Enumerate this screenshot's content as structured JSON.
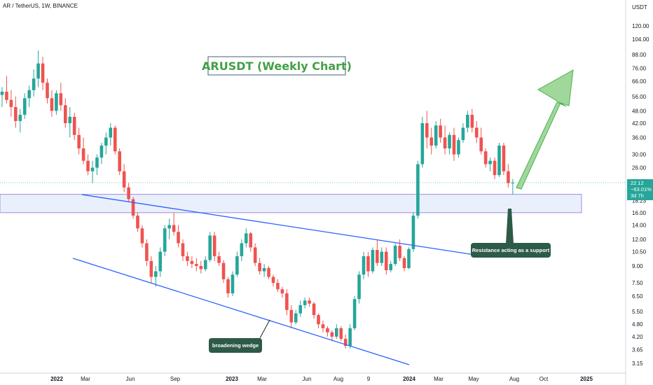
{
  "header": {
    "symbol_line": "AR / TetherUS, 1W, BINANCE",
    "currency": "USDT"
  },
  "colors": {
    "up": "#26a69a",
    "down": "#ef5350",
    "trendline": "#2962ff",
    "zone_fill": "#e3e9fb",
    "zone_border": "#9c8fe0",
    "arrow": "#7cc576",
    "title": "#43a047",
    "callout_bg": "#2e5a48",
    "price_tag": "#26a69a"
  },
  "chart_data": {
    "type": "candlestick",
    "title": "ARUSDT (Weekly Chart)",
    "y_scale": "log",
    "y_ticks": [
      "120.00",
      "104.00",
      "88.00",
      "76.00",
      "66.00",
      "56.00",
      "48.00",
      "42.00",
      "36.00",
      "30.00",
      "26.00",
      "22.12",
      "18.23",
      "16.00",
      "14.00",
      "12.00",
      "10.50",
      "9.00",
      "7.50",
      "6.50",
      "5.50",
      "4.80",
      "4.20",
      "3.65",
      "3.15"
    ],
    "x_ticks": [
      "2022",
      "Mar",
      "Jun",
      "Sep",
      "2023",
      "Mar",
      "Jun",
      "Aug",
      "9",
      "2024",
      "Mar",
      "May",
      "Aug",
      "Oct",
      "2025"
    ],
    "last_price": {
      "value": "22.12",
      "change": "−63.01%",
      "countdown": "3d 7h"
    },
    "support_zone": {
      "low": 16.0,
      "high": 19.5
    },
    "annotations": {
      "wedge_label": "broadening wedge",
      "support_label": "Resistance acting as a support"
    },
    "candles": [
      [
        57,
        62,
        50,
        59
      ],
      [
        59,
        70,
        52,
        54
      ],
      [
        54,
        60,
        45,
        50
      ],
      [
        50,
        56,
        40,
        43
      ],
      [
        43,
        49,
        38,
        46
      ],
      [
        46,
        58,
        44,
        55
      ],
      [
        55,
        63,
        50,
        60
      ],
      [
        60,
        75,
        56,
        68
      ],
      [
        68,
        92,
        62,
        80
      ],
      [
        80,
        86,
        60,
        65
      ],
      [
        65,
        68,
        52,
        55
      ],
      [
        55,
        60,
        45,
        48
      ],
      [
        48,
        60,
        46,
        58
      ],
      [
        58,
        65,
        48,
        51
      ],
      [
        51,
        55,
        40,
        42
      ],
      [
        42,
        50,
        36,
        45
      ],
      [
        45,
        47,
        35,
        37
      ],
      [
        37,
        40,
        30,
        32
      ],
      [
        32,
        36,
        27,
        28
      ],
      [
        28,
        30,
        24,
        25
      ],
      [
        25,
        28,
        22,
        26
      ],
      [
        26,
        30,
        24,
        29
      ],
      [
        29,
        34,
        27,
        33
      ],
      [
        33,
        38,
        30,
        36
      ],
      [
        36,
        42,
        33,
        40
      ],
      [
        40,
        41,
        30,
        31
      ],
      [
        31,
        32,
        24,
        25
      ],
      [
        25,
        27,
        20,
        21
      ],
      [
        21,
        22,
        18,
        18.5
      ],
      [
        18.5,
        19,
        15,
        15.5
      ],
      [
        15.5,
        16,
        13,
        13.5
      ],
      [
        13.5,
        14,
        11,
        11.5
      ],
      [
        11.5,
        12,
        9,
        9.5
      ],
      [
        9.5,
        10,
        7.5,
        8
      ],
      [
        8,
        9,
        7.2,
        8.5
      ],
      [
        8.5,
        11,
        8,
        10.5
      ],
      [
        10.5,
        14,
        10,
        13.5
      ],
      [
        13.5,
        15,
        12,
        14
      ],
      [
        14,
        16,
        12.5,
        13
      ],
      [
        13,
        14,
        11,
        11.5
      ],
      [
        11.5,
        12,
        9.5,
        10
      ],
      [
        10,
        10.5,
        9,
        9.5
      ],
      [
        9.5,
        10,
        8.8,
        9.2
      ],
      [
        9.2,
        9.8,
        8.5,
        9.0
      ],
      [
        9.0,
        9.5,
        8.3,
        8.7
      ],
      [
        8.7,
        10,
        8.5,
        9.6
      ],
      [
        9.6,
        13,
        9.4,
        12.5
      ],
      [
        12.5,
        13,
        9.5,
        10
      ],
      [
        10,
        10.5,
        9,
        9.3
      ],
      [
        9.3,
        9.6,
        7.5,
        7.8
      ],
      [
        7.8,
        8,
        6.4,
        6.7
      ],
      [
        6.7,
        8.5,
        6.5,
        8.2
      ],
      [
        8.2,
        10.5,
        8,
        10
      ],
      [
        10,
        12,
        9.5,
        11.5
      ],
      [
        11.5,
        13.5,
        11,
        12.8
      ],
      [
        12.8,
        13,
        10.5,
        11
      ],
      [
        11,
        11.5,
        9,
        9.3
      ],
      [
        9.3,
        9.8,
        8.2,
        8.5
      ],
      [
        8.5,
        9.2,
        8,
        8.8
      ],
      [
        8.8,
        9,
        7.8,
        8
      ],
      [
        8,
        8.2,
        7.2,
        7.5
      ],
      [
        7.5,
        7.8,
        6.8,
        7
      ],
      [
        7,
        7.2,
        6.4,
        6.7
      ],
      [
        6.7,
        7,
        5.3,
        5.6
      ],
      [
        5.6,
        5.9,
        4.6,
        4.9
      ],
      [
        4.9,
        5.6,
        4.8,
        5.4
      ],
      [
        5.4,
        6.2,
        5.2,
        5.9
      ],
      [
        5.9,
        6.4,
        5.7,
        6.2
      ],
      [
        6.2,
        6.4,
        5.8,
        6
      ],
      [
        6,
        6.1,
        5.1,
        5.3
      ],
      [
        5.3,
        5.4,
        4.6,
        4.8
      ],
      [
        4.8,
        5,
        4.4,
        4.6
      ],
      [
        4.6,
        4.7,
        4.2,
        4.4
      ],
      [
        4.4,
        4.5,
        4.0,
        4.2
      ],
      [
        4.2,
        4.8,
        4.1,
        4.6
      ],
      [
        4.6,
        4.7,
        4.0,
        4.1
      ],
      [
        4.1,
        4.3,
        3.7,
        3.8
      ],
      [
        3.8,
        4.8,
        3.7,
        4.6
      ],
      [
        4.6,
        6.5,
        4.5,
        6.3
      ],
      [
        6.3,
        8.5,
        6.0,
        8.2
      ],
      [
        8.2,
        10.5,
        7.8,
        10
      ],
      [
        10,
        10.5,
        8.0,
        8.5
      ],
      [
        8.5,
        11,
        8.3,
        10.7
      ],
      [
        10.7,
        12,
        9.0,
        9.3
      ],
      [
        9.3,
        11,
        9.0,
        10.5
      ],
      [
        10.5,
        11,
        8.2,
        8.6
      ],
      [
        8.6,
        9.5,
        8.4,
        9.2
      ],
      [
        9.2,
        11.5,
        9,
        11.2
      ],
      [
        11.2,
        12,
        9.5,
        9.8
      ],
      [
        9.8,
        10,
        8.5,
        8.8
      ],
      [
        8.8,
        11,
        8.7,
        10.8
      ],
      [
        10.8,
        16,
        10.5,
        15.5
      ],
      [
        15.5,
        28,
        15,
        27
      ],
      [
        27,
        45,
        26,
        42
      ],
      [
        42,
        48,
        32,
        36
      ],
      [
        36,
        40,
        30,
        33
      ],
      [
        33,
        43,
        32,
        41
      ],
      [
        41,
        44,
        34,
        36
      ],
      [
        36,
        41,
        30,
        32
      ],
      [
        32,
        38,
        30,
        37
      ],
      [
        37,
        40,
        28,
        30
      ],
      [
        30,
        36,
        29,
        35
      ],
      [
        35,
        42,
        34,
        40
      ],
      [
        40,
        48,
        38,
        46
      ],
      [
        46,
        49,
        38,
        40
      ],
      [
        40,
        43,
        34,
        36
      ],
      [
        36,
        40,
        30,
        31
      ],
      [
        31,
        32,
        26,
        27
      ],
      [
        27,
        29,
        25,
        28
      ],
      [
        28,
        29,
        23,
        24
      ],
      [
        24,
        34,
        23.5,
        33
      ],
      [
        33,
        34,
        24,
        25
      ],
      [
        25,
        27,
        21,
        22
      ],
      [
        22,
        23,
        19.5,
        22.12
      ]
    ],
    "candle_count": 114
  }
}
